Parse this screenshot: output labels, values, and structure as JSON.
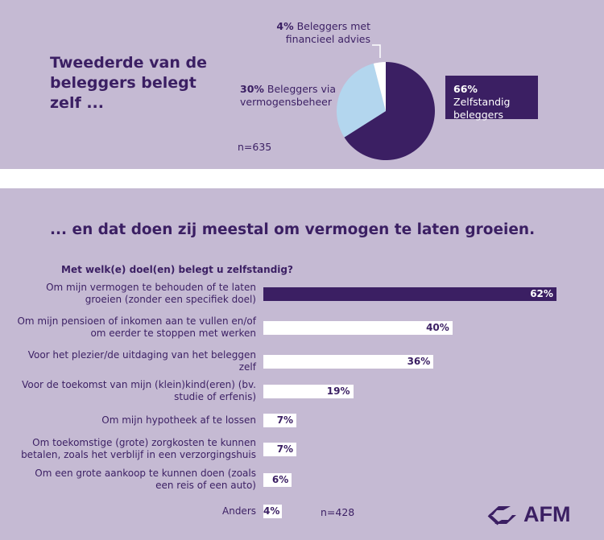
{
  "top": {
    "title": "Tweederde van de beleggers belegt zelf ...",
    "n": "n=635"
  },
  "chart_data": [
    {
      "type": "pie",
      "slices": [
        {
          "pct_label": "66%",
          "label": "Zelfstandig beleggers",
          "value": 66,
          "color": "#3b1f63"
        },
        {
          "pct_label": "30%",
          "label": "Beleggers via vermogensbeheer",
          "value": 30,
          "color": "#b3d6ee"
        },
        {
          "pct_label": "4%",
          "label": "Beleggers met financieel advies",
          "value": 4,
          "color": "#ffffff"
        }
      ]
    },
    {
      "type": "bar",
      "orientation": "horizontal",
      "title": "... en dat doen zij meestal om vermogen te laten groeien.",
      "question": "Met welk(e) doel(en) belegt u zelfstandig?",
      "n": "n=428",
      "categories": [
        "Om mijn vermogen te behouden of te laten groeien (zonder een specifiek doel)",
        "Om mijn pensioen of inkomen aan te vullen en/of om eerder te stoppen met werken",
        "Voor het plezier/de uitdaging van het beleggen zelf",
        "Voor de toekomst van mijn (klein)kind(eren) (bv. studie of erfenis)",
        "Om mijn hypotheek af te lossen",
        "Om toekomstige (grote) zorgkosten te kunnen betalen, zoals het verblijf in een verzorgingshuis",
        "Om een grote aankoop te kunnen doen (zoals een reis of een auto)",
        "Anders"
      ],
      "values": [
        62,
        40,
        36,
        19,
        7,
        7,
        6,
        4
      ],
      "value_labels": [
        "62%",
        "40%",
        "36%",
        "19%",
        "7%",
        "7%",
        "6%",
        "4%"
      ],
      "highlight_color": "#3b1f63",
      "bar_color": "#ffffff"
    }
  ],
  "logo": {
    "text": "AFM"
  }
}
